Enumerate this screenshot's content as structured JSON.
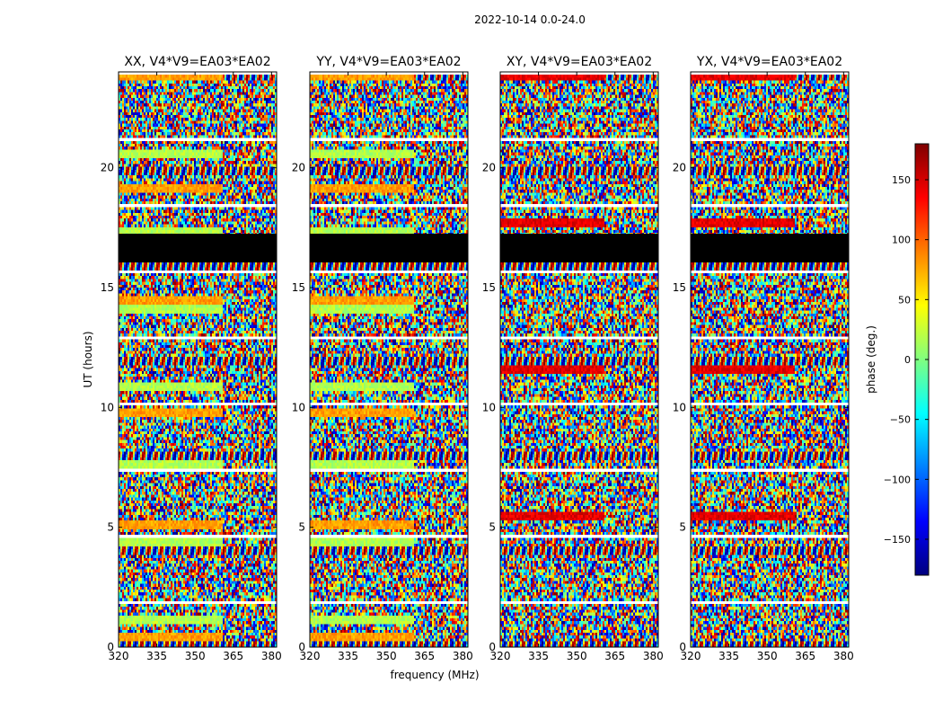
{
  "figure_title": "2022-10-14 0.0-24.0",
  "chart_data": [
    {
      "type": "heatmap",
      "title": "XX, V4*V9=EA03*EA02",
      "xlabel": "frequency (MHz)",
      "ylabel": "UT (hours)",
      "xlim": [
        320,
        382
      ],
      "ylim": [
        0,
        24
      ],
      "xticks": [
        320,
        335,
        350,
        365,
        380
      ],
      "yticks": [
        0,
        5,
        10,
        15,
        20
      ],
      "value_range": [
        -180,
        180
      ]
    },
    {
      "type": "heatmap",
      "title": "YY, V4*V9=EA03*EA02",
      "xlim": [
        320,
        382
      ],
      "ylim": [
        0,
        24
      ],
      "xticks": [
        320,
        335,
        350,
        365,
        380
      ],
      "yticks": [
        0,
        5,
        10,
        15,
        20
      ],
      "value_range": [
        -180,
        180
      ]
    },
    {
      "type": "heatmap",
      "title": "XY, V4*V9=EA03*EA02",
      "xlim": [
        320,
        382
      ],
      "ylim": [
        0,
        24
      ],
      "xticks": [
        320,
        335,
        350,
        365,
        380
      ],
      "yticks": [
        0,
        5,
        10,
        15,
        20
      ],
      "value_range": [
        -180,
        180
      ]
    },
    {
      "type": "heatmap",
      "title": "YX, V4*V9=EA03*EA02",
      "xlim": [
        320,
        382
      ],
      "ylim": [
        0,
        24
      ],
      "xticks": [
        320,
        335,
        350,
        365,
        380
      ],
      "yticks": [
        0,
        5,
        10,
        15,
        20
      ],
      "value_range": [
        -180,
        180
      ]
    }
  ],
  "flagged_ut_ranges_hours": [
    [
      16.05,
      17.25
    ]
  ],
  "colorbar": {
    "label": "phase (deg.)",
    "ticks": [
      150,
      100,
      50,
      0,
      -50,
      -100,
      -150
    ],
    "range": [
      -180,
      180
    ],
    "colormap": "jet",
    "colors": [
      "#00007f",
      "#0000ff",
      "#0080ff",
      "#00ffff",
      "#80ff80",
      "#ffff00",
      "#ff8000",
      "#ff0000",
      "#7f0000"
    ]
  }
}
